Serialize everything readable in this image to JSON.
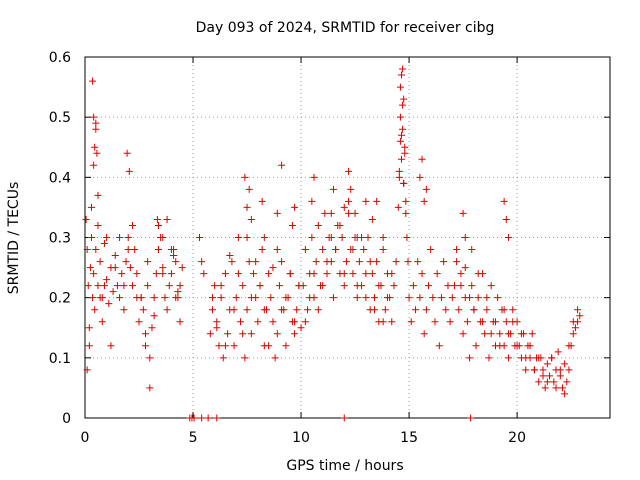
{
  "chart_data": {
    "type": "scatter",
    "title": "Day 093 of 2024, SRMTID for receiver cibg",
    "xlabel": "GPS time / hours",
    "ylabel": "SRMTID / TECUs",
    "xlim": [
      0,
      24.3
    ],
    "ylim": [
      0,
      0.6
    ],
    "x_ticks": [
      0,
      5,
      10,
      15,
      20
    ],
    "x_tick_labels": [
      "0",
      "5",
      "10",
      "15",
      "20"
    ],
    "y_ticks": [
      0,
      0.1,
      0.2,
      0.3,
      0.4,
      0.5,
      0.6
    ],
    "y_tick_labels": [
      "0",
      "0.1",
      "0.2",
      "0.3",
      "0.4",
      "0.5",
      "0.6"
    ],
    "grid": true,
    "marker": "+",
    "series_color": "#e00000",
    "series": [
      {
        "name": "SRMTID",
        "x": [
          0.05,
          0.1,
          0.15,
          0.2,
          0.25,
          0.3,
          0.35,
          0.4,
          0.45,
          0.5,
          0.6,
          0.7,
          0.8,
          0.9,
          1.0,
          1.1,
          1.2,
          1.3,
          1.4,
          1.5,
          1.6,
          1.7,
          1.8,
          1.9,
          2.0,
          2.1,
          2.2,
          2.3,
          2.4,
          2.5,
          2.6,
          2.7,
          2.8,
          2.9,
          3.0,
          3.1,
          3.2,
          3.3,
          3.4,
          3.5,
          3.6,
          3.7,
          3.8,
          3.9,
          4.0,
          4.1,
          4.2,
          4.3,
          4.4,
          4.5,
          0.1,
          0.2,
          0.3,
          0.4,
          0.5,
          0.6,
          0.7,
          0.8,
          0.9,
          1.0,
          1.2,
          1.4,
          1.6,
          1.8,
          2.0,
          2.2,
          2.4,
          2.6,
          2.8,
          3.0,
          3.2,
          3.4,
          3.6,
          3.8,
          4.0,
          4.2,
          4.4,
          0.35,
          0.4,
          0.45,
          0.5,
          0.55,
          0.6,
          1.95,
          2.05,
          2.9,
          3.35,
          3.6,
          4.1,
          4.3,
          5.3,
          5.4,
          5.5,
          5.8,
          5.9,
          6.0,
          6.1,
          6.2,
          6.3,
          6.4,
          6.5,
          6.6,
          6.7,
          6.8,
          6.9,
          7.0,
          7.1,
          7.2,
          7.3,
          7.4,
          7.5,
          7.6,
          7.7,
          7.8,
          7.9,
          8.0,
          8.1,
          8.2,
          8.3,
          8.4,
          8.5,
          8.6,
          8.7,
          8.8,
          8.9,
          9.0,
          9.1,
          9.2,
          9.3,
          9.4,
          9.5,
          9.6,
          9.7,
          9.8,
          9.9,
          10.0,
          5.9,
          6.1,
          6.3,
          6.5,
          6.7,
          6.9,
          7.1,
          7.3,
          7.5,
          7.7,
          7.9,
          8.1,
          8.3,
          8.5,
          8.7,
          8.9,
          9.1,
          9.3,
          9.5,
          9.7,
          9.9,
          7.4,
          7.5,
          7.6,
          7.7,
          8.2,
          8.3,
          8.9,
          9.1,
          9.6,
          9.7,
          10.1,
          10.2,
          10.3,
          10.4,
          10.5,
          10.6,
          10.7,
          10.8,
          10.9,
          11.0,
          11.1,
          11.2,
          11.3,
          11.4,
          11.5,
          11.6,
          11.7,
          11.8,
          11.9,
          12.0,
          12.1,
          12.2,
          12.3,
          12.4,
          12.5,
          12.6,
          12.7,
          12.8,
          12.9,
          13.0,
          13.1,
          13.2,
          13.3,
          13.4,
          13.5,
          13.6,
          13.7,
          13.8,
          13.9,
          14.0,
          14.1,
          14.2,
          14.3,
          14.4,
          10.2,
          10.4,
          10.6,
          10.8,
          11.0,
          11.2,
          11.4,
          11.6,
          11.8,
          12.0,
          12.2,
          12.4,
          12.6,
          12.8,
          13.0,
          13.2,
          13.4,
          13.6,
          13.8,
          14.0,
          14.2,
          10.5,
          10.6,
          11.4,
          11.5,
          12.0,
          12.2,
          12.3,
          12.5,
          12.6,
          13.0,
          13.3,
          13.5,
          13.8,
          14.5,
          14.55,
          14.6,
          14.65,
          14.7,
          14.75,
          14.8,
          14.85,
          14.9,
          14.95,
          15.0,
          15.1,
          15.2,
          15.3,
          15.4,
          15.5,
          15.6,
          15.7,
          15.8,
          15.9,
          16.0,
          16.1,
          16.2,
          16.3,
          16.4,
          16.5,
          16.6,
          16.7,
          16.8,
          16.9,
          17.0,
          14.6,
          14.65,
          14.7,
          14.75,
          14.6,
          14.7,
          14.8,
          14.55,
          14.65,
          14.75,
          14.85,
          15.5,
          15.6,
          15.7,
          15.8,
          17.1,
          17.2,
          17.3,
          17.4,
          17.5,
          17.6,
          17.7,
          17.8,
          17.9,
          18.0,
          18.1,
          18.2,
          18.3,
          18.4,
          18.5,
          18.6,
          18.7,
          18.8,
          18.9,
          19.0,
          19.1,
          19.2,
          19.3,
          19.4,
          19.5,
          19.6,
          19.7,
          19.8,
          19.9,
          20.0,
          17.2,
          17.4,
          17.6,
          17.8,
          18.0,
          18.2,
          18.4,
          18.6,
          18.8,
          19.0,
          19.2,
          19.4,
          19.6,
          19.8,
          20.0,
          17.5,
          17.6,
          17.9,
          19.4,
          19.5,
          19.6,
          20.1,
          20.2,
          20.3,
          20.4,
          20.5,
          20.6,
          20.7,
          20.8,
          20.9,
          21.0,
          21.1,
          21.2,
          21.3,
          21.4,
          21.5,
          21.6,
          21.7,
          21.8,
          21.9,
          22.0,
          22.1,
          22.2,
          22.3,
          22.4,
          22.5,
          22.6,
          22.7,
          22.8,
          22.9,
          20.2,
          20.4,
          20.6,
          20.8,
          21.0,
          21.2,
          21.4,
          21.6,
          21.8,
          22.0,
          22.2,
          22.4,
          22.6,
          22.8,
          4.85,
          4.95,
          5.05,
          5.4,
          5.7,
          6.1,
          12.0,
          17.85
        ],
        "y": [
          0.33,
          0.28,
          0.22,
          0.15,
          0.25,
          0.3,
          0.2,
          0.24,
          0.18,
          0.28,
          0.22,
          0.26,
          0.2,
          0.29,
          0.23,
          0.19,
          0.25,
          0.21,
          0.27,
          0.22,
          0.2,
          0.24,
          0.18,
          0.26,
          0.3,
          0.25,
          0.22,
          0.28,
          0.2,
          0.16,
          0.2,
          0.18,
          0.14,
          0.22,
          0.1,
          0.15,
          0.2,
          0.24,
          0.28,
          0.3,
          0.25,
          0.2,
          0.18,
          0.22,
          0.24,
          0.28,
          0.26,
          0.2,
          0.22,
          0.25,
          0.08,
          0.12,
          0.35,
          0.42,
          0.48,
          0.32,
          0.2,
          0.16,
          0.22,
          0.3,
          0.12,
          0.25,
          0.3,
          0.22,
          0.28,
          0.32,
          0.24,
          0.2,
          0.12,
          0.05,
          0.17,
          0.32,
          0.24,
          0.33,
          0.28,
          0.2,
          0.16,
          0.56,
          0.5,
          0.45,
          0.49,
          0.44,
          0.37,
          0.44,
          0.41,
          0.26,
          0.33,
          0.3,
          0.27,
          0.21,
          0.3,
          0.26,
          0.24,
          0.14,
          0.18,
          0.22,
          0.16,
          0.12,
          0.2,
          0.1,
          0.24,
          0.14,
          0.18,
          0.26,
          0.12,
          0.2,
          0.3,
          0.16,
          0.22,
          0.1,
          0.18,
          0.26,
          0.14,
          0.24,
          0.2,
          0.16,
          0.22,
          0.28,
          0.12,
          0.18,
          0.24,
          0.2,
          0.16,
          0.1,
          0.14,
          0.22,
          0.26,
          0.18,
          0.12,
          0.2,
          0.24,
          0.16,
          0.14,
          0.18,
          0.22,
          0.15,
          0.2,
          0.15,
          0.22,
          0.12,
          0.27,
          0.18,
          0.24,
          0.14,
          0.3,
          0.2,
          0.26,
          0.22,
          0.18,
          0.12,
          0.25,
          0.28,
          0.18,
          0.2,
          0.24,
          0.16,
          0.22,
          0.4,
          0.35,
          0.38,
          0.33,
          0.36,
          0.3,
          0.34,
          0.42,
          0.32,
          0.35,
          0.22,
          0.28,
          0.18,
          0.24,
          0.3,
          0.2,
          0.26,
          0.32,
          0.22,
          0.28,
          0.34,
          0.24,
          0.3,
          0.26,
          0.2,
          0.28,
          0.32,
          0.24,
          0.3,
          0.22,
          0.26,
          0.34,
          0.28,
          0.24,
          0.3,
          0.2,
          0.26,
          0.22,
          0.28,
          0.24,
          0.3,
          0.18,
          0.24,
          0.2,
          0.26,
          0.16,
          0.22,
          0.28,
          0.18,
          0.24,
          0.2,
          0.16,
          0.22,
          0.26,
          0.16,
          0.2,
          0.24,
          0.18,
          0.22,
          0.26,
          0.3,
          0.28,
          0.32,
          0.24,
          0.36,
          0.28,
          0.22,
          0.3,
          0.2,
          0.26,
          0.18,
          0.22,
          0.16,
          0.2,
          0.24,
          0.36,
          0.4,
          0.34,
          0.38,
          0.35,
          0.41,
          0.38,
          0.34,
          0.3,
          0.36,
          0.33,
          0.36,
          0.3,
          0.35,
          0.4,
          0.46,
          0.43,
          0.48,
          0.39,
          0.45,
          0.34,
          0.3,
          0.26,
          0.2,
          0.16,
          0.22,
          0.18,
          0.26,
          0.2,
          0.24,
          0.14,
          0.18,
          0.22,
          0.28,
          0.2,
          0.16,
          0.24,
          0.12,
          0.2,
          0.26,
          0.18,
          0.22,
          0.16,
          0.2,
          0.55,
          0.57,
          0.58,
          0.53,
          0.5,
          0.52,
          0.44,
          0.41,
          0.47,
          0.39,
          0.36,
          0.4,
          0.43,
          0.36,
          0.38,
          0.22,
          0.26,
          0.18,
          0.24,
          0.14,
          0.2,
          0.16,
          0.1,
          0.22,
          0.18,
          0.12,
          0.2,
          0.16,
          0.24,
          0.14,
          0.18,
          0.1,
          0.22,
          0.16,
          0.12,
          0.2,
          0.14,
          0.18,
          0.12,
          0.16,
          0.1,
          0.14,
          0.18,
          0.12,
          0.16,
          0.28,
          0.22,
          0.25,
          0.2,
          0.18,
          0.24,
          0.16,
          0.2,
          0.14,
          0.16,
          0.12,
          0.18,
          0.14,
          0.16,
          0.12,
          0.34,
          0.3,
          0.28,
          0.36,
          0.33,
          0.3,
          0.12,
          0.1,
          0.14,
          0.08,
          0.12,
          0.1,
          0.14,
          0.08,
          0.1,
          0.06,
          0.1,
          0.08,
          0.05,
          0.09,
          0.07,
          0.1,
          0.06,
          0.08,
          0.11,
          0.07,
          0.05,
          0.09,
          0.06,
          0.08,
          0.12,
          0.14,
          0.15,
          0.16,
          0.17,
          0.14,
          0.1,
          0.12,
          0.08,
          0.1,
          0.07,
          0.06,
          0.1,
          0.05,
          0.08,
          0.04,
          0.12,
          0.16,
          0.18,
          0,
          0,
          0,
          0,
          0,
          0,
          0,
          0
        ]
      }
    ]
  }
}
